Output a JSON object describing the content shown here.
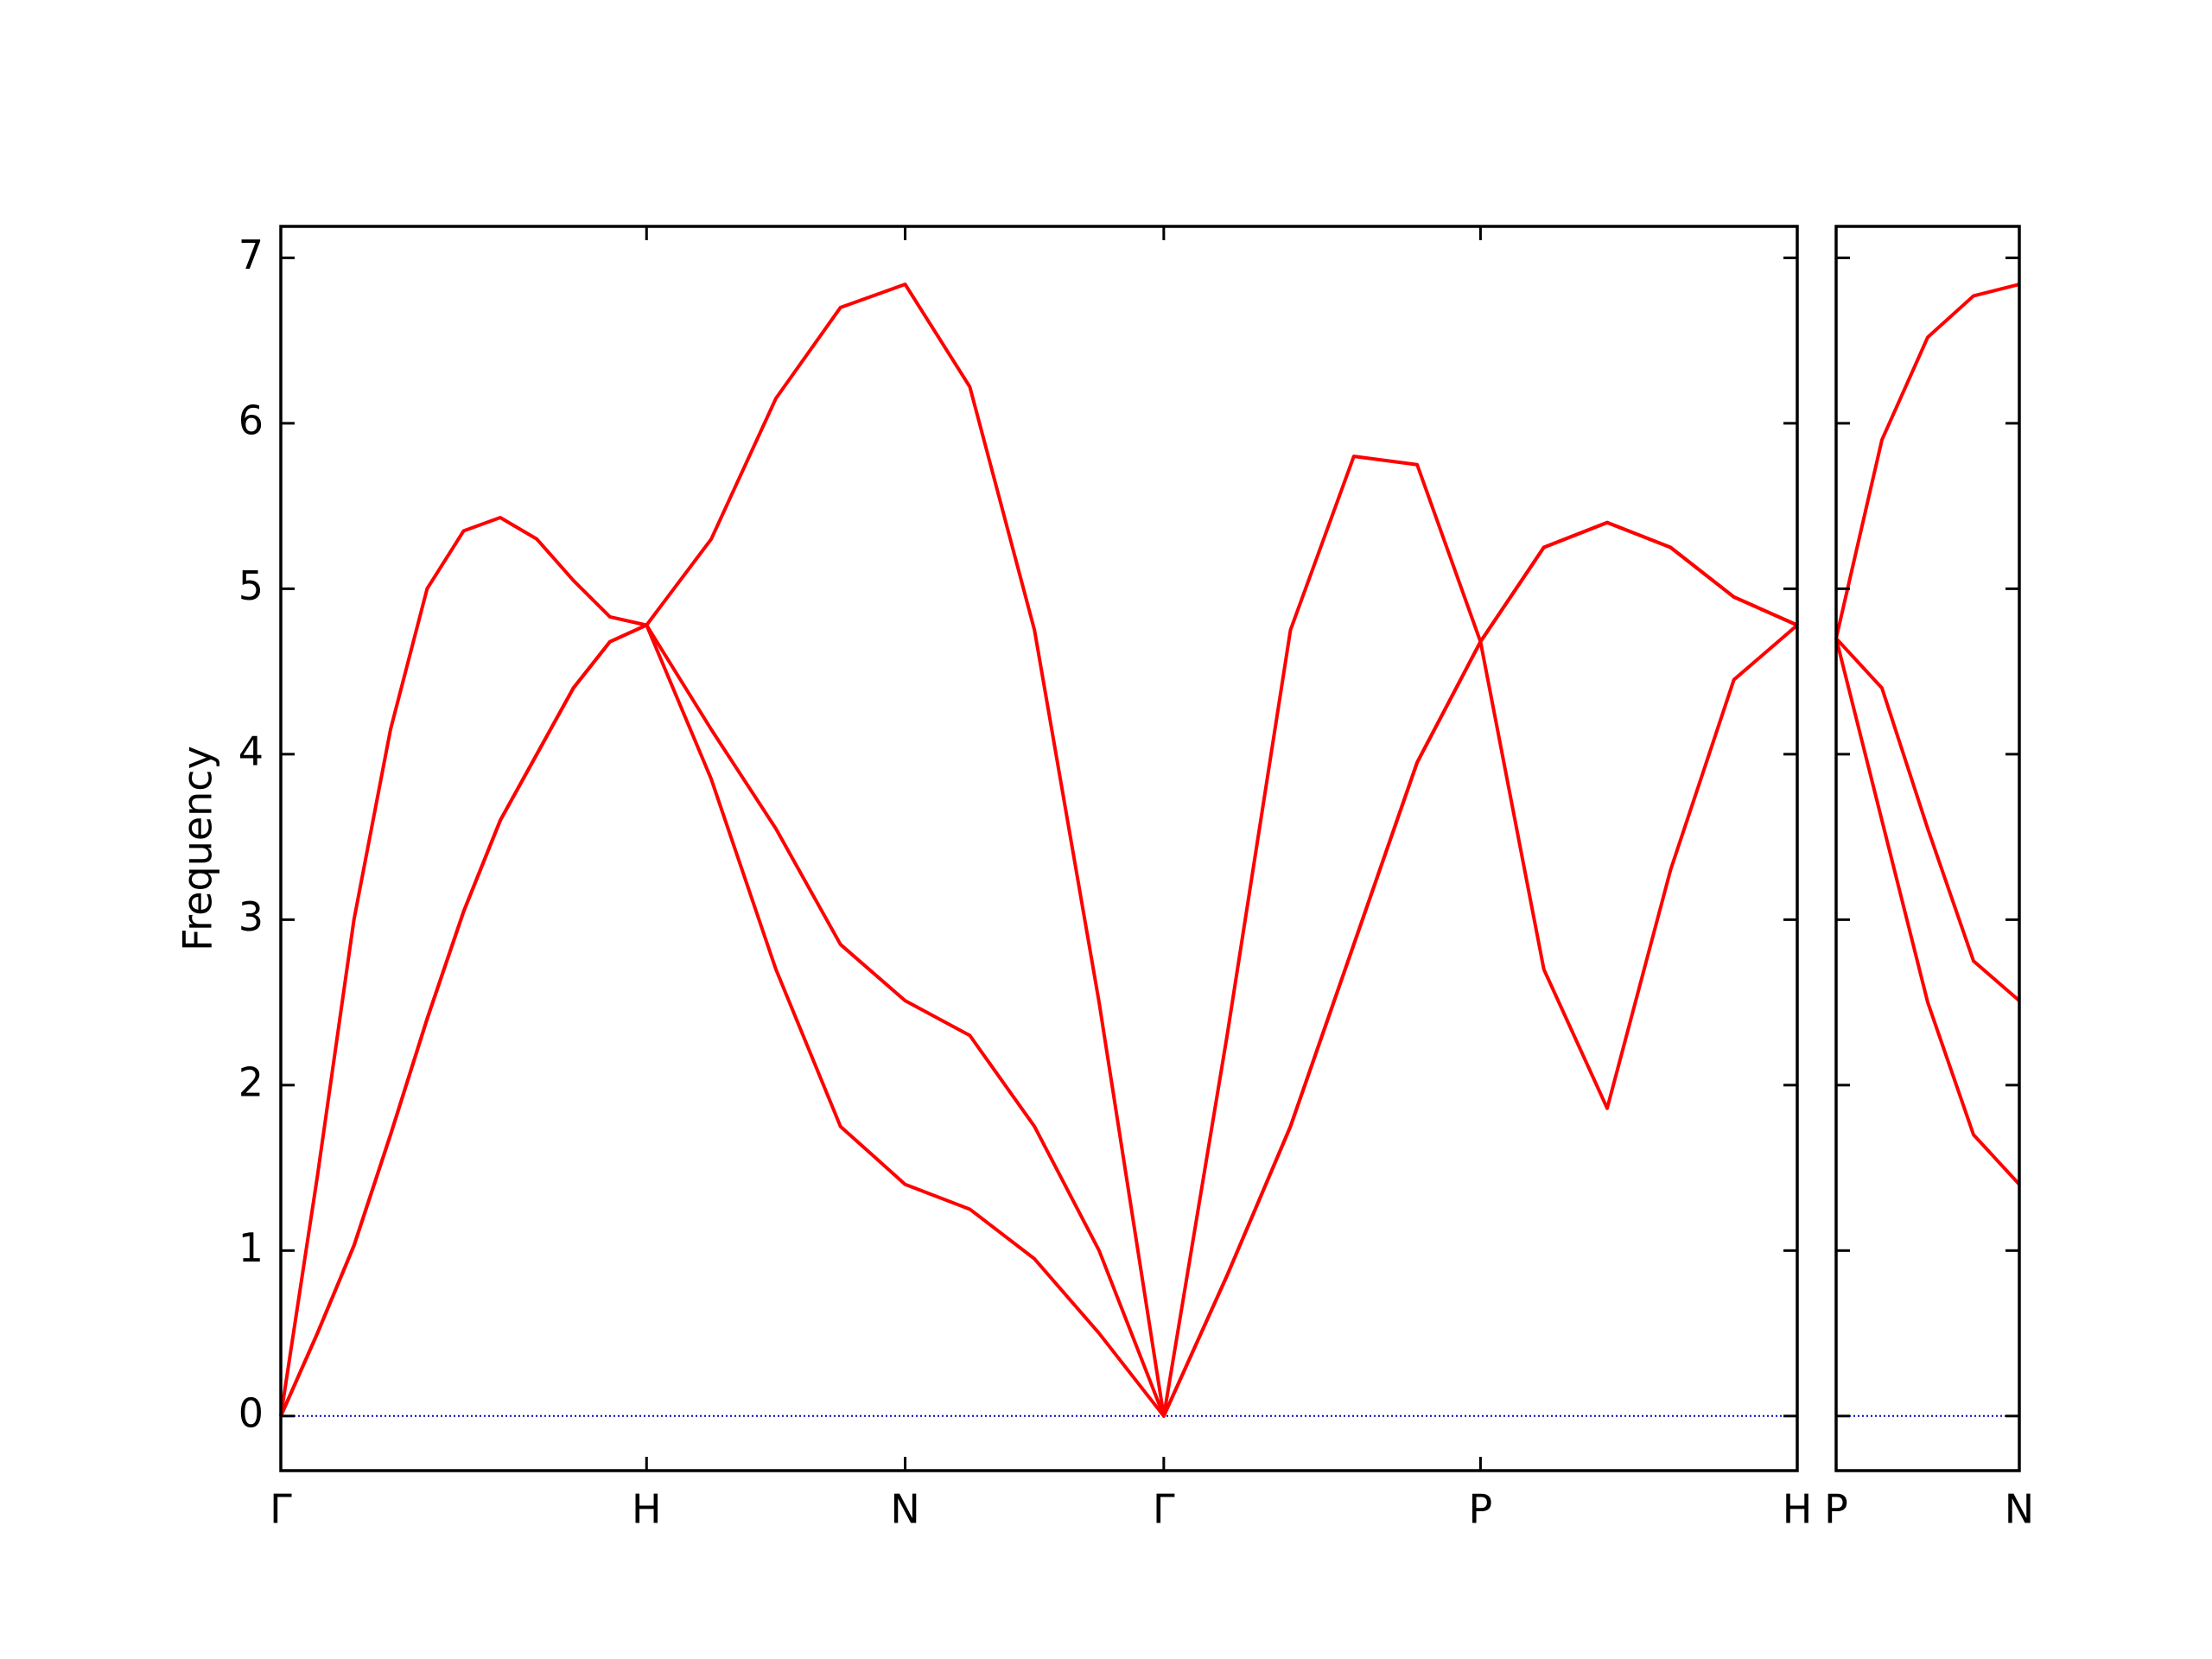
{
  "chart_data": [
    {
      "type": "line",
      "ylabel": "Frequency",
      "x": [
        0,
        0.1,
        0.2,
        0.3,
        0.4,
        0.5,
        0.6,
        0.7,
        0.8,
        0.9,
        1.0,
        1.1768,
        1.3536,
        1.5303,
        1.7071,
        1.8839,
        2.0607,
        2.2374,
        2.4142,
        2.5874,
        2.7606,
        2.9338,
        3.107,
        3.2802,
        3.4534,
        3.6266,
        3.7998,
        3.9731,
        4.1463
      ],
      "series": [
        {
          "color": "#ff0000",
          "values": [
            0,
            0.5,
            1.03,
            1.7,
            2.4,
            3.05,
            3.6,
            4.0,
            4.4,
            4.68,
            4.78,
            3.85,
            2.7,
            1.75,
            1.4,
            1.25,
            0.95,
            0.5,
            0,
            0.85,
            1.75,
            2.85,
            3.95,
            4.68,
            2.7,
            1.86,
            3.3,
            4.45,
            4.78
          ]
        },
        {
          "color": "#ff0000",
          "values": [
            0,
            0.5,
            1.03,
            1.7,
            2.4,
            3.05,
            3.6,
            4.0,
            4.4,
            4.68,
            4.78,
            4.15,
            3.55,
            2.85,
            2.51,
            2.3,
            1.75,
            1.0,
            0,
            0.85,
            1.75,
            2.85,
            3.95,
            4.68,
            5.25,
            5.4,
            5.25,
            4.95,
            4.78
          ]
        },
        {
          "color": "#ff0000",
          "values": [
            0,
            1.45,
            3.0,
            4.15,
            5.0,
            5.35,
            5.43,
            5.3,
            5.05,
            4.83,
            4.78,
            5.3,
            6.15,
            6.7,
            6.84,
            6.22,
            4.75,
            2.5,
            0,
            2.3,
            4.75,
            5.8,
            5.75,
            4.68,
            5.25,
            5.4,
            5.25,
            4.95,
            4.78
          ]
        }
      ],
      "xlim": [
        0,
        4.1463
      ],
      "ylim": [
        -0.33,
        7.19
      ],
      "xticks": [
        {
          "value": 0,
          "label": "Γ"
        },
        {
          "value": 1.0,
          "label": "H"
        },
        {
          "value": 1.7071,
          "label": "N"
        },
        {
          "value": 2.4142,
          "label": "Γ"
        },
        {
          "value": 3.2802,
          "label": "P"
        },
        {
          "value": 4.1463,
          "label": "H"
        }
      ],
      "yticks": [
        0,
        1,
        2,
        3,
        4,
        5,
        6,
        7
      ],
      "show_ytick_labels": true,
      "zero_line": {
        "y": 0,
        "color": "#0000cc"
      }
    },
    {
      "type": "line",
      "x": [
        0,
        0.125,
        0.25,
        0.375,
        0.5
      ],
      "series": [
        {
          "color": "#ff0000",
          "values": [
            4.7,
            3.6,
            2.5,
            1.7,
            1.4
          ]
        },
        {
          "color": "#ff0000",
          "values": [
            4.7,
            4.4,
            3.55,
            2.75,
            2.51
          ]
        },
        {
          "color": "#ff0000",
          "values": [
            4.7,
            5.9,
            6.52,
            6.77,
            6.84
          ]
        }
      ],
      "xlim": [
        0,
        0.5
      ],
      "ylim": [
        -0.33,
        7.19
      ],
      "xticks": [
        {
          "value": 0,
          "label": "P"
        },
        {
          "value": 0.5,
          "label": "N"
        }
      ],
      "yticks": [
        0,
        1,
        2,
        3,
        4,
        5,
        6,
        7
      ],
      "show_ytick_labels": false,
      "zero_line": {
        "y": 0,
        "color": "#0000cc"
      }
    }
  ]
}
